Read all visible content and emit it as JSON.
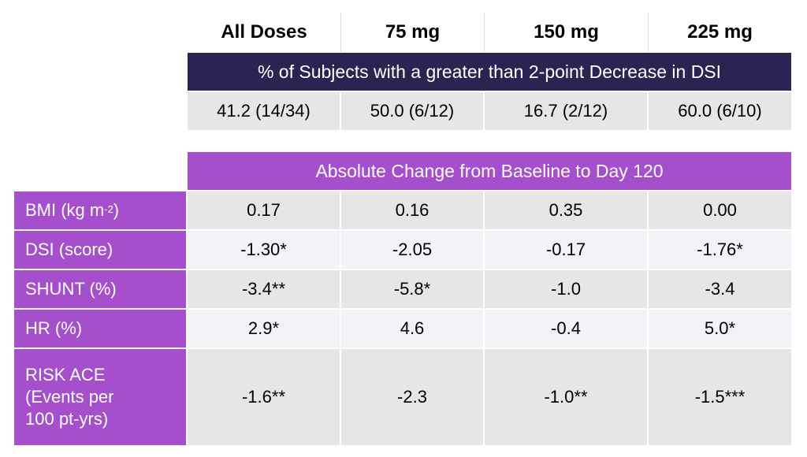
{
  "headers": [
    "All Doses",
    "75 mg",
    "150 mg",
    "225 mg"
  ],
  "top_banner": "% of Subjects with a greater than 2-point Decrease in DSI",
  "top_values": [
    "41.2 (14/34)",
    "50.0 (6/12)",
    "16.7 (2/12)",
    "60.0 (6/10)"
  ],
  "section_title": "Absolute Change from Baseline to Day 120",
  "rows": [
    {
      "label": "BMI (kg m",
      "label_sup": "-2",
      "label_suffix": ")",
      "values": [
        "0.17",
        "0.16",
        "0.35",
        "0.00"
      ]
    },
    {
      "label": "DSI (score)",
      "values": [
        "-1.30*",
        "-2.05",
        "-0.17",
        "-1.76*"
      ]
    },
    {
      "label": "SHUNT (%)",
      "values": [
        "-3.4**",
        "-5.8*",
        "-1.0",
        "-3.4"
      ]
    },
    {
      "label": "HR (%)",
      "values": [
        "2.9*",
        "4.6",
        "-0.4",
        "5.0*"
      ]
    },
    {
      "label_lines": [
        "RISK ACE",
        "(Events per",
        "100 pt-yrs)"
      ],
      "values": [
        "-1.6**",
        "-2.3",
        "-1.0**",
        "-1.5***"
      ]
    }
  ],
  "colors": {
    "navy": "#2b2453",
    "purple": "#a64fcc",
    "grey": "#e6e6e6",
    "light": "#f2f2f7"
  }
}
